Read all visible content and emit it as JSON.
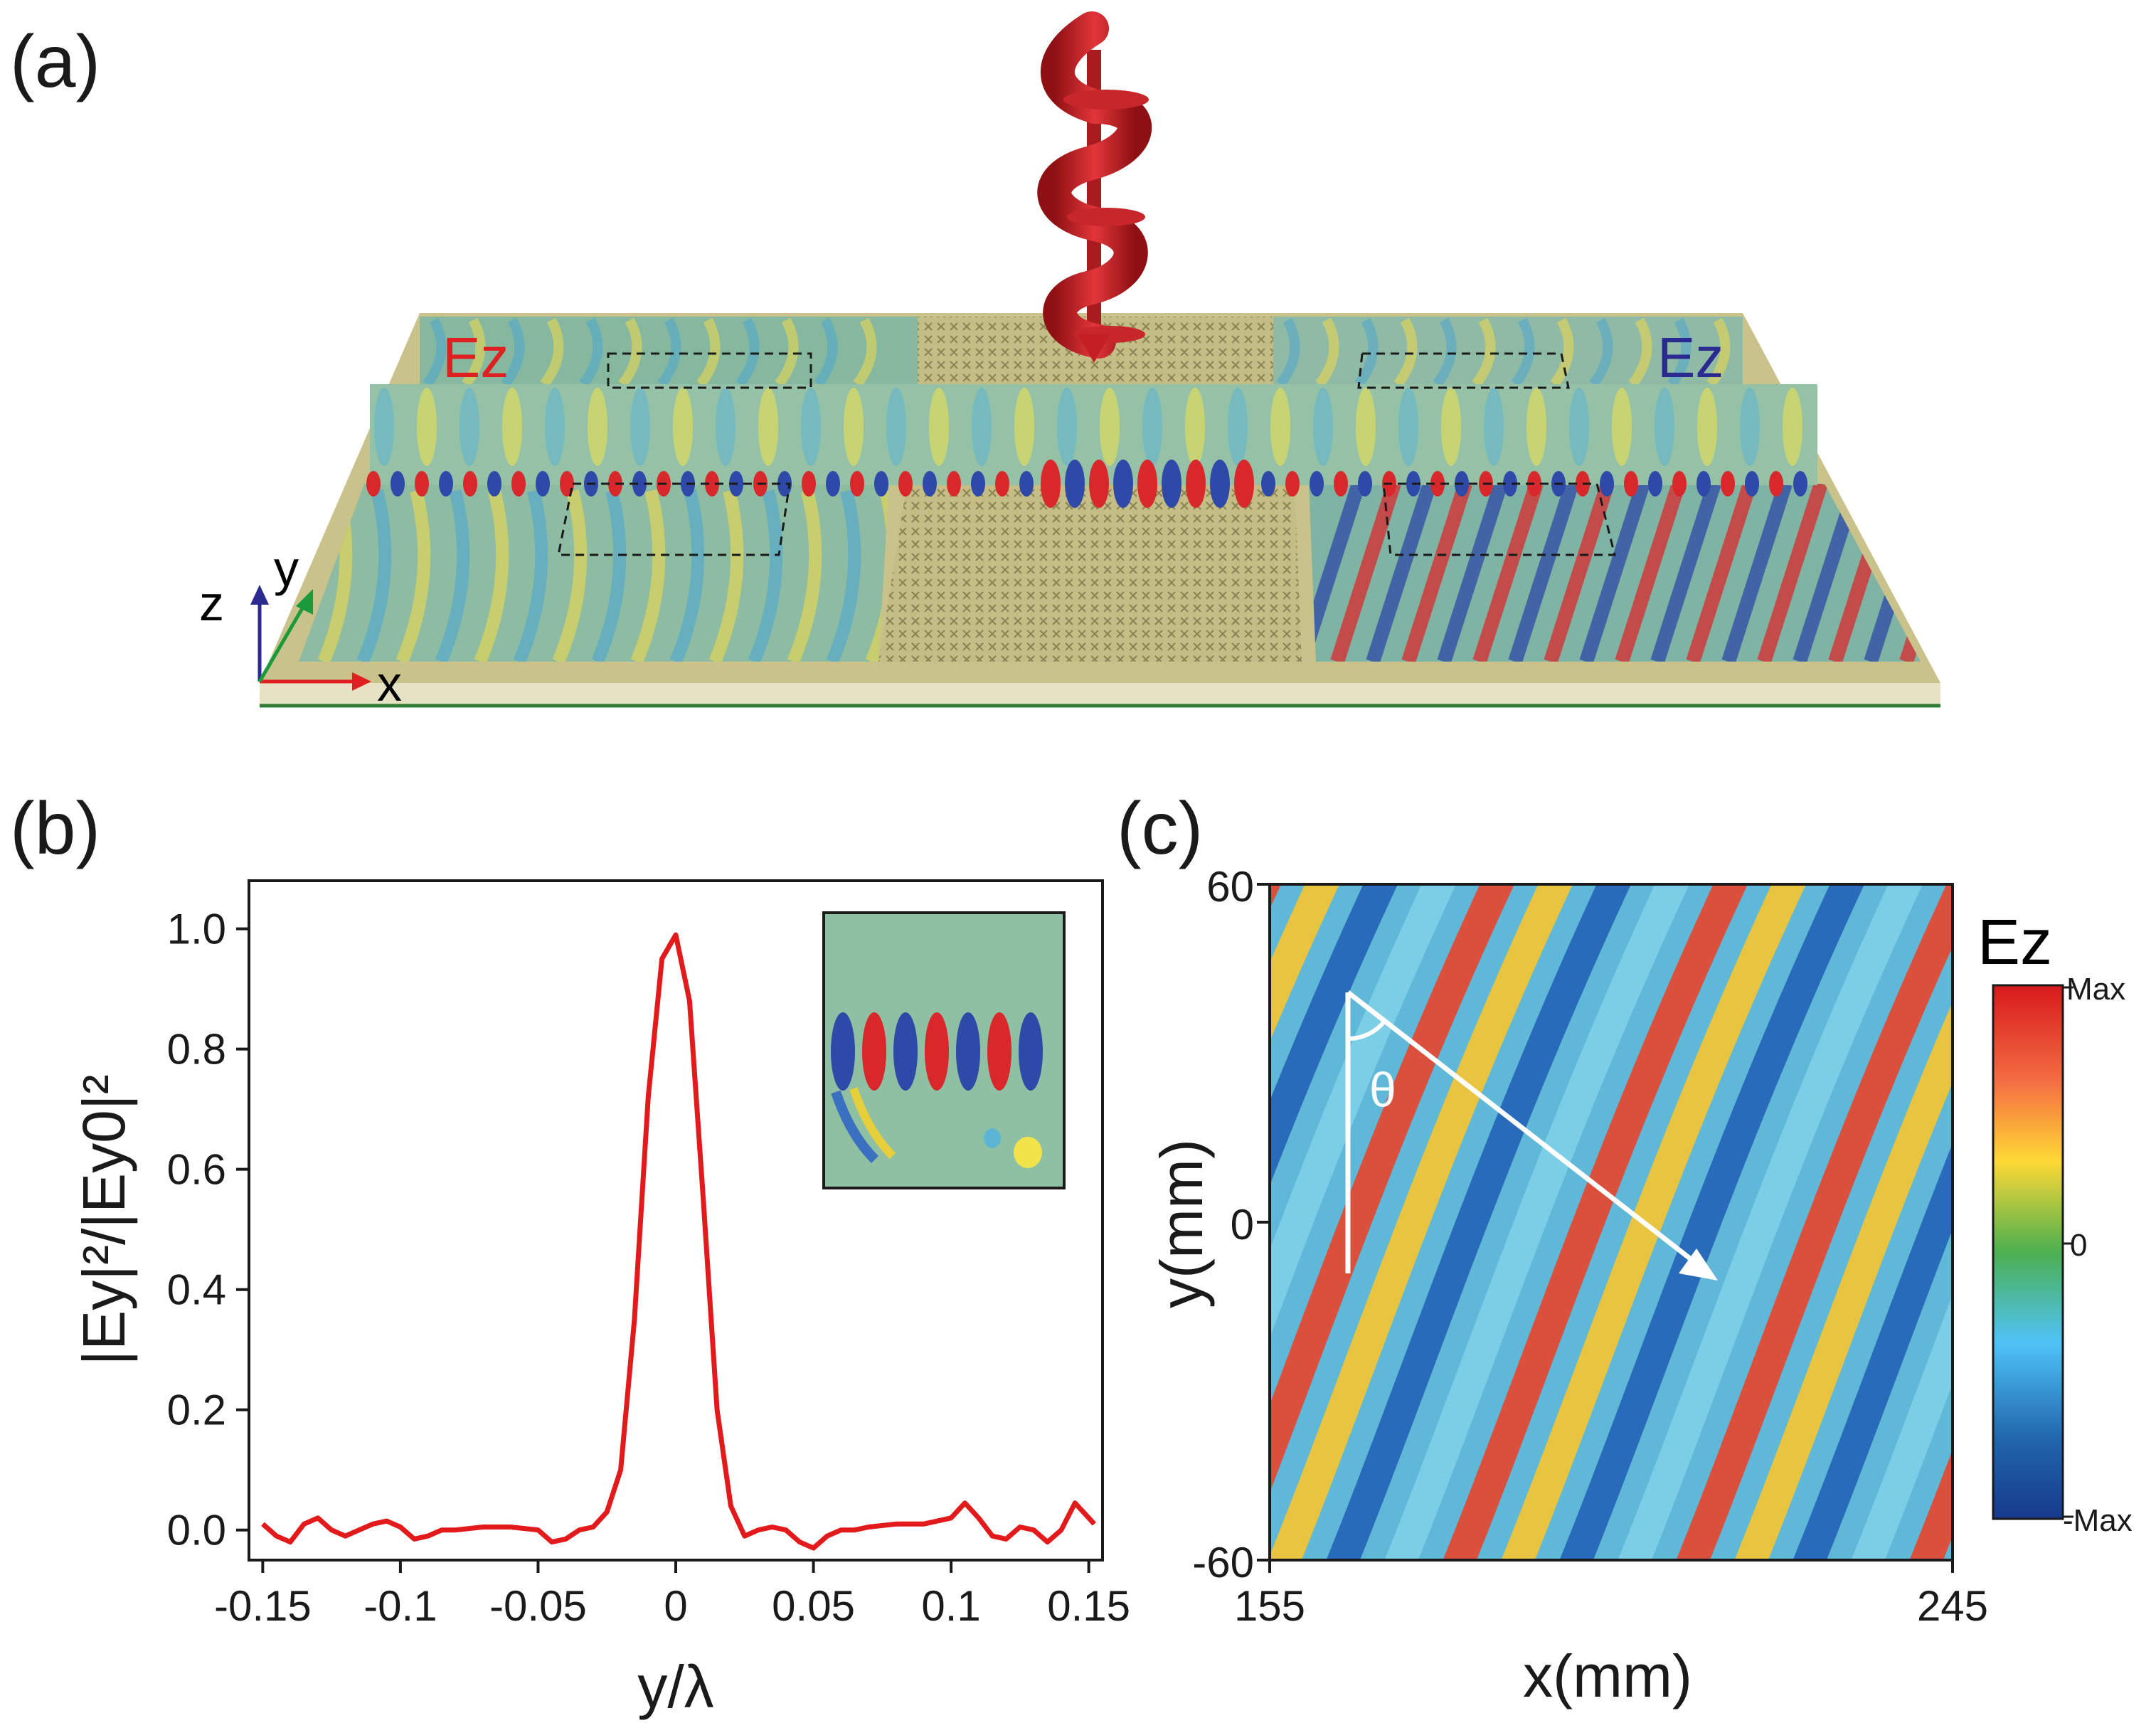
{
  "panels": {
    "a": {
      "label": "(a)"
    },
    "b": {
      "label": "(b)"
    },
    "c": {
      "label": "(c)"
    }
  },
  "schematic": {
    "field_label_left": "Ez",
    "field_label_right": "Ez",
    "field_label_left_color": "#e02020",
    "field_label_right_color": "#2a2a90",
    "axes": {
      "x": "x",
      "y": "y",
      "z": "z"
    },
    "axis_colors": {
      "x": "#e02020",
      "y": "#1a9a3a",
      "z": "#2a2a90"
    },
    "beam_color": "#d0282c",
    "substrate_color": "#cbc58d"
  },
  "chart_data": [
    {
      "type": "line",
      "panel": "b",
      "xlabel": "y/λ",
      "ylabel": "|Ey|²/|Ey0|²",
      "xlim": [
        -0.155,
        0.155
      ],
      "ylim": [
        -0.05,
        1.08
      ],
      "xticks": [
        "-0.15",
        "-0.1",
        "-0.05",
        "0",
        "0.05",
        "0.1",
        "0.15"
      ],
      "xtick_values": [
        -0.15,
        -0.1,
        -0.05,
        0,
        0.05,
        0.1,
        0.15
      ],
      "yticks": [
        "0.0",
        "0.2",
        "0.4",
        "0.6",
        "0.8",
        "1.0"
      ],
      "ytick_values": [
        0.0,
        0.2,
        0.4,
        0.6,
        0.8,
        1.0
      ],
      "series": [
        {
          "name": "|Ey|²/|Ey0|²",
          "color": "#e31a1c",
          "x": [
            -0.15,
            -0.145,
            -0.14,
            -0.135,
            -0.13,
            -0.125,
            -0.12,
            -0.115,
            -0.11,
            -0.105,
            -0.1,
            -0.095,
            -0.09,
            -0.085,
            -0.08,
            -0.07,
            -0.06,
            -0.05,
            -0.045,
            -0.04,
            -0.035,
            -0.03,
            -0.025,
            -0.02,
            -0.015,
            -0.01,
            -0.005,
            0.0,
            0.005,
            0.01,
            0.015,
            0.02,
            0.025,
            0.03,
            0.035,
            0.04,
            0.045,
            0.05,
            0.055,
            0.06,
            0.065,
            0.07,
            0.08,
            0.09,
            0.1,
            0.105,
            0.11,
            0.115,
            0.12,
            0.125,
            0.13,
            0.135,
            0.14,
            0.145,
            0.148,
            0.152
          ],
          "values": [
            0.01,
            -0.01,
            -0.02,
            0.01,
            0.02,
            0.0,
            -0.01,
            0.0,
            0.01,
            0.015,
            0.005,
            -0.015,
            -0.01,
            0.0,
            0.0,
            0.005,
            0.005,
            0.0,
            -0.02,
            -0.015,
            0.0,
            0.005,
            0.03,
            0.1,
            0.35,
            0.72,
            0.95,
            0.99,
            0.88,
            0.55,
            0.2,
            0.04,
            -0.01,
            0.0,
            0.005,
            0.0,
            -0.02,
            -0.03,
            -0.01,
            0.0,
            0.0,
            0.005,
            0.01,
            0.01,
            0.02,
            0.045,
            0.02,
            -0.01,
            -0.015,
            0.005,
            0.0,
            -0.02,
            0.0,
            0.045,
            0.03,
            0.01
          ]
        }
      ]
    },
    {
      "type": "heatmap",
      "panel": "c",
      "title": "Ez",
      "xlabel": "x(mm)",
      "ylabel": "y(mm)",
      "xlim": [
        155,
        245
      ],
      "ylim": [
        -60,
        60
      ],
      "xticks": [
        "155",
        "245"
      ],
      "yticks": [
        "-60",
        "0",
        "60"
      ],
      "ytick_values": [
        -60,
        0,
        60
      ],
      "colorbar": {
        "label": "Ez",
        "ticks": [
          "Max",
          "0",
          "-Max"
        ]
      },
      "annotation": "θ"
    }
  ]
}
